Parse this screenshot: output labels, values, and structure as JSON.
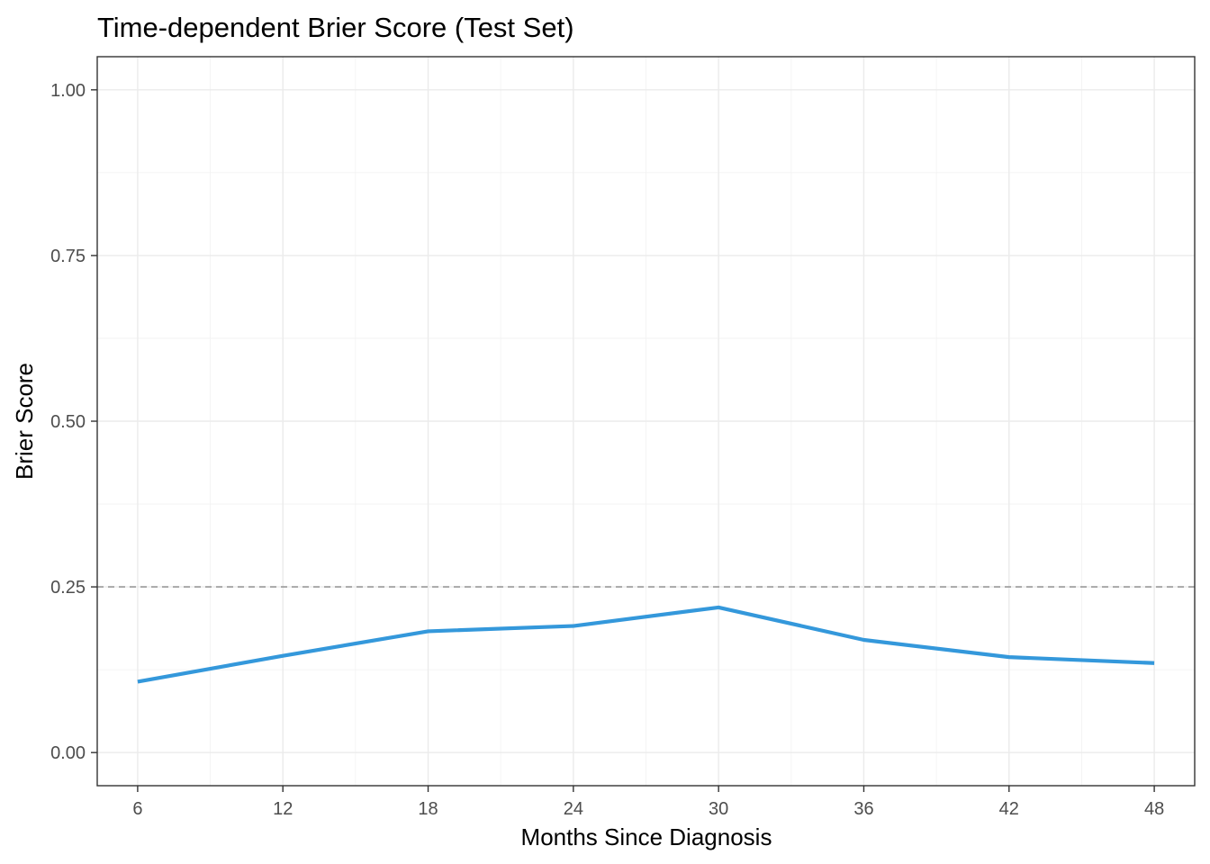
{
  "chart_data": {
    "type": "line",
    "title": "Time-dependent Brier Score (Test Set)",
    "xlabel": "Months Since Diagnosis",
    "ylabel": "Brier Score",
    "x": [
      6,
      12,
      18,
      24,
      30,
      36,
      42,
      48
    ],
    "series": [
      {
        "values": [
          0.107,
          0.146,
          0.183,
          0.191,
          0.219,
          0.17,
          0.144,
          0.135
        ],
        "color": "#3498db"
      }
    ],
    "x_ticks": [
      6,
      12,
      18,
      24,
      30,
      36,
      42,
      48
    ],
    "x_tick_labels": [
      "6",
      "12",
      "18",
      "24",
      "30",
      "36",
      "42",
      "48"
    ],
    "y_ticks": [
      0,
      0.25,
      0.5,
      0.75,
      1
    ],
    "y_tick_labels": [
      "0.00",
      "0.25",
      "0.50",
      "0.75",
      "1.00"
    ],
    "xlim": [
      4.33,
      49.67
    ],
    "ylim": [
      -0.05,
      1.05
    ],
    "reference_line": {
      "y": 0.25,
      "style": "dashed",
      "color": "#999999"
    },
    "grid": true,
    "legend": "none"
  }
}
